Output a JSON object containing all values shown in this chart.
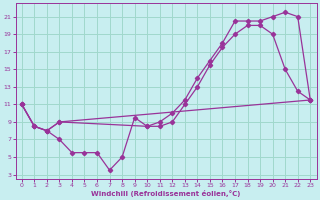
{
  "xlabel": "Windchill (Refroidissement éolien,°C)",
  "background_color": "#c8eef0",
  "grid_color": "#a0d8cc",
  "line_color": "#993399",
  "xlim": [
    -0.5,
    23.5
  ],
  "ylim": [
    2.5,
    22.5
  ],
  "yticks": [
    3,
    5,
    7,
    9,
    11,
    13,
    15,
    17,
    19,
    21
  ],
  "xticks": [
    0,
    1,
    2,
    3,
    4,
    5,
    6,
    7,
    8,
    9,
    10,
    11,
    12,
    13,
    14,
    15,
    16,
    17,
    18,
    19,
    20,
    21,
    22,
    23
  ],
  "line1_x": [
    0,
    1,
    2,
    3,
    4,
    5,
    6,
    7,
    8,
    9,
    10,
    11,
    12,
    13,
    14,
    15,
    16,
    17,
    18,
    19,
    20,
    21,
    22,
    23
  ],
  "line1_y": [
    11,
    8.5,
    8,
    7,
    5.5,
    5.5,
    5.5,
    3.5,
    5,
    9.5,
    8.5,
    8.5,
    9,
    11,
    13,
    15.5,
    17.5,
    19,
    20,
    20,
    19,
    15,
    12.5,
    11.5
  ],
  "line2_x": [
    0,
    1,
    2,
    3,
    10,
    11,
    12,
    13,
    14,
    15,
    16,
    17,
    18,
    19,
    20,
    21,
    22,
    23
  ],
  "line2_y": [
    11,
    8.5,
    8,
    9,
    8.5,
    9,
    10,
    11.5,
    14,
    16,
    18,
    20.5,
    20.5,
    20.5,
    21,
    21.5,
    21,
    11.5
  ],
  "line3_x": [
    0,
    1,
    2,
    3,
    23
  ],
  "line3_y": [
    11,
    8.5,
    8,
    9,
    11.5
  ]
}
